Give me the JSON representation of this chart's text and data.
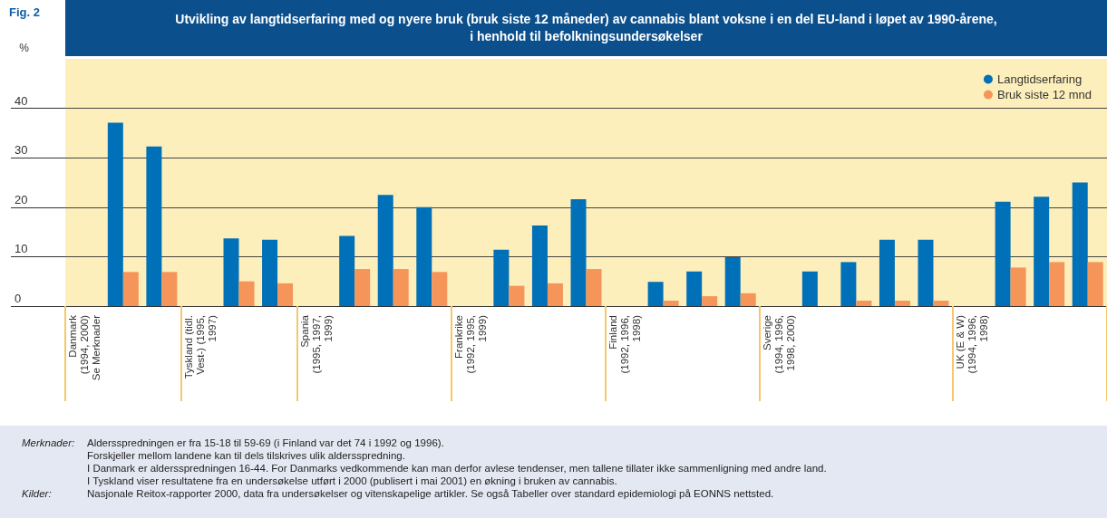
{
  "chart_data": {
    "type": "bar",
    "title": "Utvikling av langtidserfaring med og nyere bruk (bruk siste 12 måneder) av cannabis blant voksne i en del EU-land i løpet av 1990-årene,\ni henhold til befolkningsundersøkelser",
    "ylabel": "%",
    "categories": [
      "Danmark\n(1994, 2000)\nSe Merknader",
      null,
      null,
      "Tyskland (tidl.\nVest-) (1995,\n1997)",
      null,
      null,
      "Spania\n(1995, 1997,\n1999)",
      null,
      null,
      null,
      "Frankrike\n(1992, 1995,\n1999)",
      null,
      null,
      null,
      "Finland\n(1992, 1996,\n1998)",
      null,
      null,
      null,
      "Sverige\n(1994, 1996,\n1998, 2000)",
      null,
      null,
      null,
      null,
      "UK (E & W)\n(1994, 1996,\n1998)",
      null,
      null,
      null
    ],
    "series": [
      {
        "name": "Langtidserfaring",
        "color": "#0070b8",
        "values": [
          null,
          37.1,
          32.3,
          null,
          13.7,
          13.4,
          null,
          14.2,
          22.5,
          20.0,
          null,
          11.4,
          16.3,
          21.6,
          null,
          4.9,
          7.0,
          9.9,
          null,
          7.0,
          8.9,
          13.4,
          13.4,
          null,
          21.1,
          22.1,
          25.0
        ]
      },
      {
        "name": "Bruk siste 12 mnd",
        "color": "#f5955a",
        "values": [
          null,
          6.9,
          6.9,
          null,
          5.0,
          4.6,
          null,
          7.5,
          7.5,
          6.9,
          null,
          4.1,
          4.6,
          7.5,
          null,
          1.1,
          2.0,
          2.6,
          null,
          null,
          1.1,
          1.1,
          1.1,
          null,
          7.8,
          8.9,
          8.9
        ]
      }
    ],
    "ylim": [
      0,
      50
    ],
    "yticks": [
      0,
      10,
      20,
      30,
      40
    ],
    "grid": "y",
    "legend": "top right",
    "annotations": [
      "Fig. 2",
      "Merknader:",
      "Aldersspredningen er fra 15-18 til 59-69 (i Finland var det 74 i 1992 og 1996).",
      "Forskjeller mellom landene kan til dels tilskrives ulik aldersspredning.",
      "I Danmark er aldersspredningen 16-44. For Danmarks vedkommende kan man derfor avlese tendenser, men tallene tillater ikke sammenligning med andre land.",
      "I Tyskland viser resultatene fra en undersøkelse utført i 2000 (publisert i mai 2001) en økning i bruken av cannabis.",
      "Kilder:",
      "Nasjonale Reitox-rapporter 2000, data fra undersøkelser og vitenskapelige artikler. Se også Tabeller over standard epidemiologi på EONNS nettsted."
    ]
  }
}
